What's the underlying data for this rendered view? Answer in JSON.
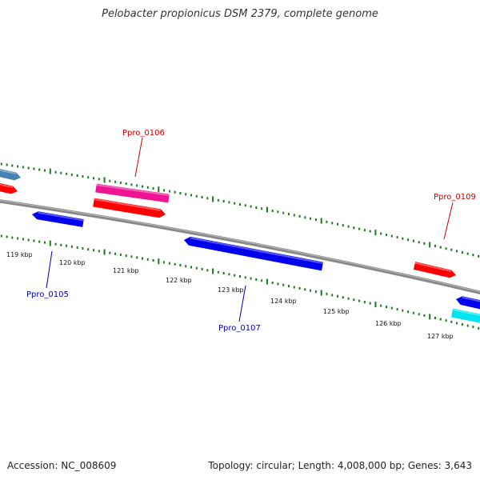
{
  "title": "Pelobacter propionicus DSM 2379, complete genome",
  "footer": {
    "accession": "Accession: NC_008609",
    "topology": "Topology: circular; Length: 4,008,000 bp; Genes: 3,643"
  },
  "colors": {
    "backbone": "#888888",
    "tick": "#1a7a1a",
    "forward_gene": "#ff0000",
    "reverse_gene": "#0000ee",
    "pink_gene": "#ee1493",
    "steelblue_gene": "#4682b4",
    "cyan_gene": "#00e5ee",
    "label_red": "#cc0000",
    "label_blue": "#0000aa"
  },
  "scale_labels": [
    "119 kbp",
    "120 kbp",
    "121 kbp",
    "122 kbp",
    "123 kbp",
    "124 kbp",
    "125 kbp",
    "126 kbp",
    "127 kbp"
  ],
  "gene_labels": [
    {
      "name": "Ppro_0105",
      "strand": "reverse"
    },
    {
      "name": "Ppro_0106",
      "strand": "forward"
    },
    {
      "name": "Ppro_0107",
      "strand": "reverse"
    },
    {
      "name": "Ppro_0109",
      "strand": "forward"
    }
  ]
}
